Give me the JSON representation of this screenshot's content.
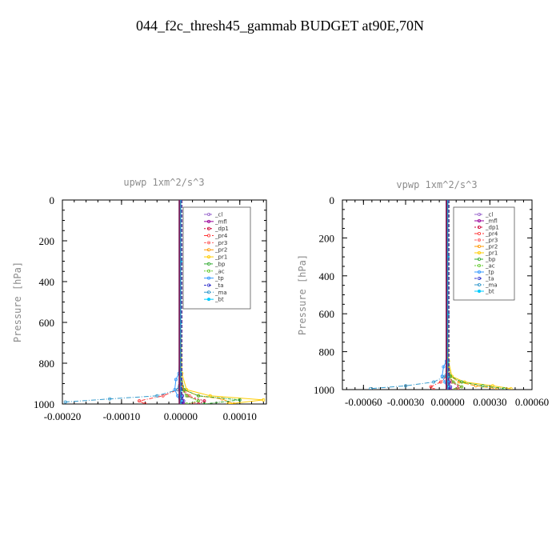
{
  "figure": {
    "title": "044_f2c_thresh45_gammab  BUDGET at90E,70N"
  },
  "chart_data": [
    {
      "type": "line",
      "title": "upwp   1xm^2/s^3",
      "ylabel": "Pressure [hPa]",
      "xlim": [
        -0.0002,
        0.000145
      ],
      "ylim": [
        1000,
        0
      ],
      "xticks": [
        -0.0002,
        -0.0001,
        0.0,
        0.0001
      ],
      "xtick_labels": [
        "-0.00020",
        "-0.00010",
        "0.00000",
        "0.00010"
      ],
      "yticks": [
        0,
        200,
        400,
        600,
        800,
        1000
      ],
      "ytick_labels": [
        "0",
        "200",
        "400",
        "600",
        "800",
        "1000"
      ],
      "legend_position": "upper-right",
      "series": [
        {
          "name": "_cl",
          "color": "#9966cc",
          "x": [
            0,
            0,
            0,
            0,
            0,
            0,
            2e-06,
            0
          ],
          "y": [
            0,
            300,
            600,
            850,
            930,
            960,
            985,
            1000
          ]
        },
        {
          "name": "_mfl",
          "color": "#990099",
          "x": [
            0,
            0,
            0,
            0,
            0,
            1e-06,
            3e-06,
            5e-06
          ],
          "y": [
            0,
            300,
            600,
            850,
            930,
            960,
            985,
            1000
          ]
        },
        {
          "name": "_dp1",
          "color": "#cc0033",
          "x": [
            0,
            0,
            0,
            0,
            3e-06,
            1.2e-05,
            4e-05,
            3e-05
          ],
          "y": [
            0,
            300,
            600,
            850,
            930,
            960,
            985,
            1000
          ]
        },
        {
          "name": "_pr4",
          "color": "#ff3333",
          "x": [
            0,
            0,
            0,
            0,
            -5e-06,
            -3e-05,
            -7e-05,
            -6e-05
          ],
          "y": [
            0,
            300,
            600,
            850,
            930,
            960,
            985,
            1000
          ]
        },
        {
          "name": "_pr3",
          "color": "#ff6666",
          "x": [
            0,
            0,
            0,
            0,
            4e-06,
            1.5e-05,
            3e-05,
            2e-05
          ],
          "y": [
            0,
            300,
            600,
            850,
            930,
            960,
            985,
            1000
          ]
        },
        {
          "name": "_pr2",
          "color": "#ff9900",
          "x": [
            0,
            0,
            0,
            0,
            5e-06,
            3e-05,
            7e-05,
            9e-05
          ],
          "y": [
            0,
            300,
            600,
            850,
            930,
            960,
            975,
            1000
          ]
        },
        {
          "name": "_pr1",
          "color": "#ffcc00",
          "x": [
            0,
            0,
            0,
            2e-06,
            1e-05,
            5e-05,
            0.00014,
            8e-05
          ],
          "y": [
            0,
            300,
            600,
            850,
            930,
            960,
            980,
            1000
          ]
        },
        {
          "name": "_bp",
          "color": "#33aa33",
          "x": [
            0,
            0,
            0,
            0,
            6e-06,
            3e-05,
            0.0001,
            4e-05
          ],
          "y": [
            0,
            300,
            600,
            850,
            930,
            960,
            980,
            1000
          ]
        },
        {
          "name": "_ac",
          "color": "#66cc33",
          "x": [
            0,
            0,
            0,
            0,
            2e-06,
            1e-05,
            3e-05,
            1e-05
          ],
          "y": [
            0,
            300,
            600,
            850,
            930,
            960,
            985,
            1000
          ]
        },
        {
          "name": "_tp",
          "color": "#3399ff",
          "x": [
            0,
            0,
            0,
            -3e-06,
            -8e-06,
            -1e-05,
            -5e-06,
            0
          ],
          "y": [
            0,
            300,
            600,
            850,
            880,
            930,
            960,
            1000
          ]
        },
        {
          "name": "_ta",
          "color": "#3333cc",
          "x": [
            0,
            0,
            0,
            0,
            1e-06,
            3e-06,
            5e-06,
            2e-06
          ],
          "y": [
            0,
            300,
            600,
            850,
            930,
            960,
            985,
            1000
          ]
        },
        {
          "name": "_ma",
          "color": "#3399cc",
          "x": [
            0,
            0,
            0,
            0,
            -5e-06,
            -4e-05,
            -0.00012,
            -0.000195
          ],
          "y": [
            0,
            300,
            600,
            850,
            930,
            960,
            975,
            990
          ]
        },
        {
          "name": "_bt",
          "color": "#00ccff",
          "x": [
            0,
            0,
            0,
            0,
            0,
            0,
            1e-06,
            0
          ],
          "y": [
            0,
            300,
            600,
            850,
            930,
            960,
            985,
            1000
          ]
        }
      ]
    },
    {
      "type": "line",
      "title": "vpwp   1xm^2/s^3",
      "ylabel": "Pressure [hPa]",
      "xlim": [
        -0.00075,
        0.0006
      ],
      "ylim": [
        1000,
        0
      ],
      "xticks": [
        -0.0006,
        -0.0003,
        0.0,
        0.0003,
        0.0006
      ],
      "xtick_labels": [
        "-0.00060",
        "-0.00030",
        "0.00000",
        "0.00030",
        "0.00060"
      ],
      "yticks": [
        0,
        200,
        400,
        600,
        800,
        1000
      ],
      "ytick_labels": [
        "0",
        "200",
        "400",
        "600",
        "800",
        "1000"
      ],
      "legend_position": "upper-right",
      "series": [
        {
          "name": "_cl",
          "color": "#9966cc",
          "x": [
            0,
            0,
            0,
            0,
            0,
            0,
            5e-06,
            0
          ],
          "y": [
            0,
            300,
            600,
            850,
            930,
            960,
            985,
            1000
          ]
        },
        {
          "name": "_mfl",
          "color": "#990099",
          "x": [
            0,
            0,
            0,
            0,
            0,
            3e-06,
            1e-05,
            2e-05
          ],
          "y": [
            0,
            300,
            600,
            850,
            930,
            960,
            985,
            1000
          ]
        },
        {
          "name": "_dp1",
          "color": "#cc0033",
          "x": [
            0,
            0,
            0,
            0,
            1e-05,
            3e-05,
            8e-05,
            6e-05
          ],
          "y": [
            0,
            300,
            600,
            850,
            930,
            960,
            985,
            1000
          ]
        },
        {
          "name": "_pr4",
          "color": "#ff3333",
          "x": [
            0,
            0,
            0,
            0,
            -1e-05,
            -5e-05,
            -0.00012,
            -0.0001
          ],
          "y": [
            0,
            300,
            600,
            850,
            930,
            960,
            985,
            1000
          ]
        },
        {
          "name": "_pr3",
          "color": "#ff6666",
          "x": [
            0,
            0,
            0,
            0,
            1e-05,
            4e-05,
            0.0001,
            7e-05
          ],
          "y": [
            0,
            300,
            600,
            850,
            930,
            960,
            985,
            1000
          ]
        },
        {
          "name": "_pr2",
          "color": "#ff9900",
          "x": [
            0,
            0,
            0,
            0,
            2e-05,
            8e-05,
            0.0002,
            0.00035
          ],
          "y": [
            0,
            300,
            600,
            850,
            930,
            960,
            980,
            995
          ]
        },
        {
          "name": "_pr1",
          "color": "#ffcc00",
          "x": [
            0,
            0,
            0,
            5e-06,
            3e-05,
            0.00012,
            0.00032,
            0.00045
          ],
          "y": [
            0,
            300,
            600,
            850,
            930,
            960,
            980,
            995
          ]
        },
        {
          "name": "_bp",
          "color": "#33aa33",
          "x": [
            0,
            0,
            0,
            0,
            2e-05,
            0.0001,
            0.00025,
            0.0004
          ],
          "y": [
            0,
            300,
            600,
            850,
            930,
            960,
            980,
            995
          ]
        },
        {
          "name": "_ac",
          "color": "#66cc33",
          "x": [
            0,
            0,
            0,
            0,
            1e-05,
            4e-05,
            0.0001,
            5e-05
          ],
          "y": [
            0,
            300,
            600,
            850,
            930,
            960,
            985,
            1000
          ]
        },
        {
          "name": "_tp",
          "color": "#3399ff",
          "x": [
            0,
            0,
            0,
            -1e-05,
            -3e-05,
            -4e-05,
            -2e-05,
            0
          ],
          "y": [
            0,
            300,
            600,
            850,
            880,
            930,
            960,
            1000
          ]
        },
        {
          "name": "_ta",
          "color": "#3333cc",
          "x": [
            0,
            0,
            0,
            0,
            5e-06,
            1e-05,
            2e-05,
            1e-05
          ],
          "y": [
            0,
            300,
            600,
            850,
            930,
            960,
            985,
            1000
          ]
        },
        {
          "name": "_ma",
          "color": "#3399cc",
          "x": [
            0,
            0,
            0,
            0,
            -2e-05,
            -0.0001,
            -0.0003,
            -0.00055
          ],
          "y": [
            0,
            300,
            600,
            850,
            930,
            960,
            980,
            995
          ]
        },
        {
          "name": "_bt",
          "color": "#00ccff",
          "x": [
            0,
            0,
            0,
            0,
            0,
            0,
            3e-06,
            0
          ],
          "y": [
            0,
            300,
            600,
            850,
            930,
            960,
            985,
            1000
          ]
        }
      ]
    }
  ]
}
